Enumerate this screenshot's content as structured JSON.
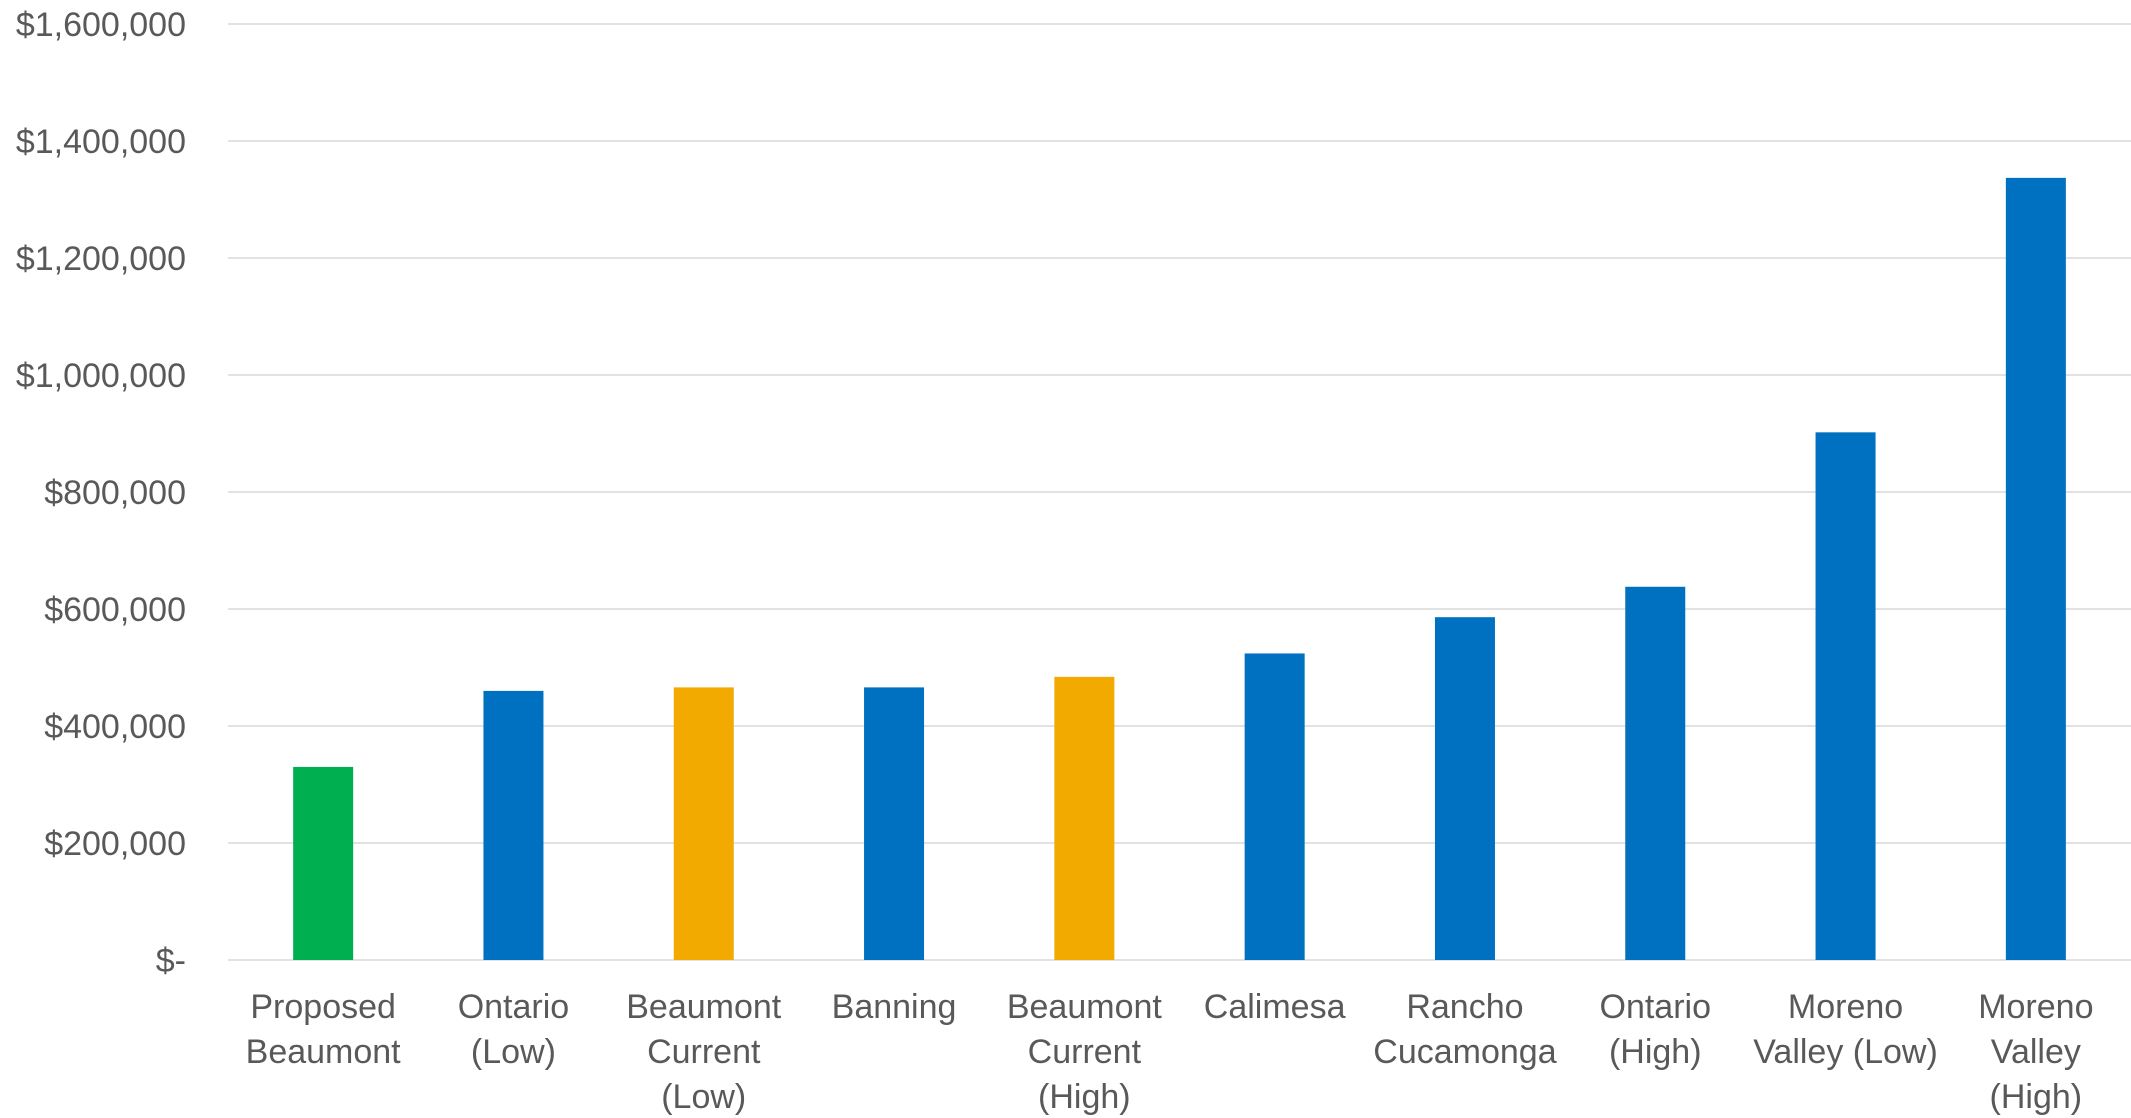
{
  "chart_data": {
    "type": "bar",
    "title": "",
    "xlabel": "",
    "ylabel": "",
    "ylim": [
      0,
      1600000
    ],
    "yticks": [
      0,
      200000,
      400000,
      600000,
      800000,
      1000000,
      1200000,
      1400000,
      1600000
    ],
    "ytick_labels": [
      "$-",
      "$200,000",
      "$400,000",
      "$600,000",
      "$800,000",
      "$1,000,000",
      "$1,200,000",
      "$1,400,000",
      "$1,600,000"
    ],
    "grid": true,
    "legend": "none",
    "categories": [
      [
        "Proposed",
        "Beaumont"
      ],
      [
        "Ontario",
        "(Low)"
      ],
      [
        "Beaumont",
        "Current",
        "(Low)"
      ],
      [
        "Banning"
      ],
      [
        "Beaumont",
        "Current",
        "(High)"
      ],
      [
        "Calimesa"
      ],
      [
        "Rancho",
        "Cucamonga"
      ],
      [
        "Ontario",
        "(High)"
      ],
      [
        "Moreno",
        "Valley (Low)"
      ],
      [
        "Moreno",
        "Valley",
        "(High)"
      ]
    ],
    "values": [
      330000,
      460000,
      466000,
      466000,
      484000,
      524000,
      586000,
      638000,
      902000,
      1337000
    ],
    "bar_colors": [
      "#00b050",
      "#0070c0",
      "#f2a900",
      "#0070c0",
      "#f2a900",
      "#0070c0",
      "#0070c0",
      "#0070c0",
      "#0070c0",
      "#0070c0"
    ]
  }
}
